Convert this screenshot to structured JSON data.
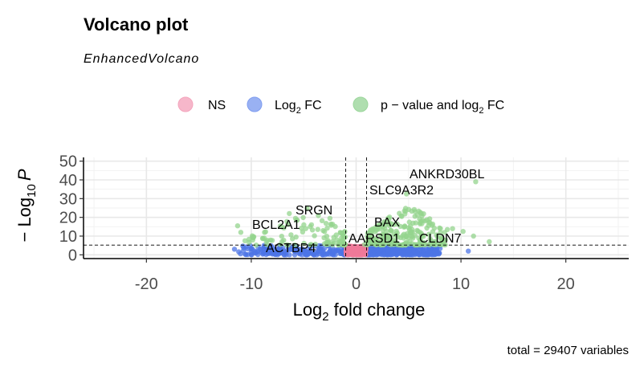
{
  "chart_data": {
    "type": "scatter",
    "title": "Volcano plot",
    "subtitle": "EnhancedVolcano",
    "caption": "total = 29407 variables",
    "xlabel": "fold change",
    "xlabel_prefix": "Log",
    "xlabel_sub": "2",
    "ylabel_prefix": "− Log",
    "ylabel_sub": "10",
    "ylabel_var": "P",
    "xlim": [
      -26,
      26
    ],
    "ylim": [
      -2,
      52
    ],
    "x_ticks": [
      -20,
      -10,
      0,
      10,
      20
    ],
    "x_tick_labels": [
      "-20",
      "-10",
      "0",
      "10",
      "20"
    ],
    "y_ticks": [
      0,
      10,
      20,
      30,
      40,
      50
    ],
    "y_tick_labels": [
      "0",
      "10",
      "20",
      "30",
      "40",
      "50"
    ],
    "thresholds": {
      "log2fc": [
        -1,
        1
      ],
      "pvalue_log10": 5.2
    },
    "grid": true,
    "legend_position": "top",
    "legend": [
      {
        "key": "ns",
        "label": "NS",
        "color": "#f4a5bd"
      },
      {
        "key": "fc",
        "label": "Log",
        "sub": "2",
        "label_after": " FC",
        "color": "#7f9df0"
      },
      {
        "key": "both",
        "label": "p − value and log",
        "sub": "2",
        "label_after": " FC",
        "color": "#9bd69b"
      }
    ],
    "series_colors": {
      "ns": "#ef7a9a",
      "fc": "#4c74e6",
      "both": "#94d48e"
    },
    "labeled_points": [
      {
        "gene": "ANKRD30BL",
        "x": 11.4,
        "y": 39.0
      },
      {
        "gene": "SLC9A3R2",
        "x": 4.8,
        "y": 32.5
      },
      {
        "gene": "SRGN",
        "x": -2.5,
        "y": 19.5
      },
      {
        "gene": "BCL2A1",
        "x": -4.8,
        "y": 14.0
      },
      {
        "gene": "BAX",
        "x": 3.2,
        "y": 15.5
      },
      {
        "gene": "AARSD1",
        "x": 0.8,
        "y": 5.5
      },
      {
        "gene": "CLDN7",
        "x": 6.5,
        "y": 6.5
      },
      {
        "gene": "ACTBP4",
        "x": -3.2,
        "y": 2.5
      }
    ],
    "outliers": [
      {
        "x": -11.3,
        "y": 15.5,
        "group": "both"
      },
      {
        "x": -11.0,
        "y": 12.0,
        "group": "both"
      },
      {
        "x": -10.6,
        "y": 7.5,
        "group": "both"
      },
      {
        "x": -9.8,
        "y": 9.5,
        "group": "both"
      },
      {
        "x": 8.7,
        "y": 13.5,
        "group": "both"
      },
      {
        "x": 9.2,
        "y": 14.0,
        "group": "both"
      },
      {
        "x": 10.2,
        "y": 12.5,
        "group": "both"
      },
      {
        "x": 11.2,
        "y": 10.0,
        "group": "both"
      },
      {
        "x": 12.7,
        "y": 7.0,
        "group": "both"
      },
      {
        "x": 10.7,
        "y": 2.0,
        "group": "fc"
      },
      {
        "x": -11.6,
        "y": 3.0,
        "group": "fc"
      }
    ]
  }
}
